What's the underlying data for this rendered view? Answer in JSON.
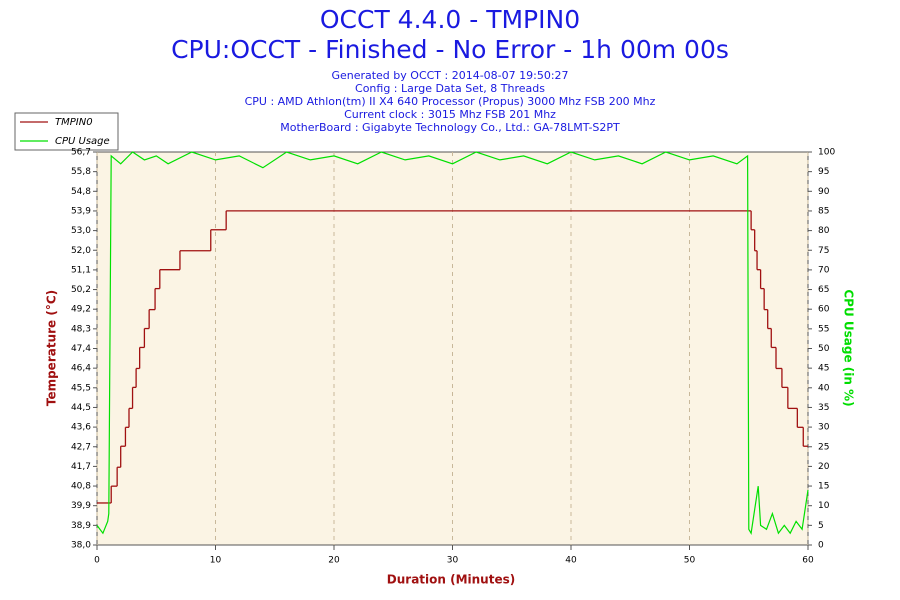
{
  "chart_data": {
    "type": "line",
    "title": "OCCT 4.4.0 - TMPIN0",
    "subtitle": "CPU:OCCT - Finished - No Error - 1h 00m 00s",
    "info_lines": [
      "Generated by OCCT : 2014-08-07 19:50:27",
      "Config : Large Data Set, 8 Threads",
      "CPU : AMD Athlon(tm) II X4 640 Processor (Propus) 3000 Mhz FSB 200 Mhz",
      "Current clock : 3015 Mhz FSB 201 Mhz",
      "MotherBoard : Gigabyte Technology Co., Ltd.: GA-78LMT-S2PT"
    ],
    "x_label": "Duration (Minutes)",
    "y_label": "Temperature (°C)",
    "y2_label": "CPU Usage (in %)",
    "xlim": [
      0,
      60
    ],
    "xticks": [
      0,
      10,
      20,
      30,
      40,
      50,
      60
    ],
    "ylim": [
      38.0,
      56.7
    ],
    "yticks": [
      {
        "value": 38.0,
        "label": "38,0"
      },
      {
        "value": 38.935,
        "label": "38,9"
      },
      {
        "value": 39.87,
        "label": "39,9"
      },
      {
        "value": 40.805,
        "label": "40,8"
      },
      {
        "value": 41.74,
        "label": "41,7"
      },
      {
        "value": 42.675,
        "label": "42,7"
      },
      {
        "value": 43.61,
        "label": "43,6"
      },
      {
        "value": 44.545,
        "label": "44,5"
      },
      {
        "value": 45.48,
        "label": "45,5"
      },
      {
        "value": 46.415,
        "label": "46,4"
      },
      {
        "value": 47.35,
        "label": "47,4"
      },
      {
        "value": 48.285,
        "label": "48,3"
      },
      {
        "value": 49.22,
        "label": "49,2"
      },
      {
        "value": 50.155,
        "label": "50,2"
      },
      {
        "value": 51.09,
        "label": "51,1"
      },
      {
        "value": 52.025,
        "label": "52,0"
      },
      {
        "value": 52.96,
        "label": "53,0"
      },
      {
        "value": 53.895,
        "label": "53,9"
      },
      {
        "value": 54.83,
        "label": "54,8"
      },
      {
        "value": 55.765,
        "label": "55,8"
      },
      {
        "value": 56.7,
        "label": "56,7"
      }
    ],
    "y2lim": [
      0,
      100
    ],
    "y2ticks": [
      0,
      5,
      10,
      15,
      20,
      25,
      30,
      35,
      40,
      45,
      50,
      55,
      60,
      65,
      70,
      75,
      80,
      85,
      90,
      95,
      100
    ],
    "grid": true,
    "legend": "top-left",
    "series": [
      {
        "name": "TMPIN0",
        "color": "#a01010",
        "step": "post",
        "x": [
          0,
          1.2,
          1.7,
          2.0,
          2.4,
          2.7,
          3.0,
          3.3,
          3.6,
          4.0,
          4.4,
          4.9,
          5.3,
          7.0,
          9.6,
          10.9,
          55.2,
          55.5,
          55.7,
          56.0,
          56.3,
          56.6,
          56.9,
          57.3,
          57.8,
          58.3,
          59.1,
          59.6,
          60
        ],
        "values": [
          40.0,
          40.8,
          41.7,
          42.7,
          43.6,
          44.5,
          45.5,
          46.4,
          47.4,
          48.3,
          49.2,
          50.2,
          51.1,
          52.0,
          53.0,
          53.9,
          53.0,
          52.0,
          51.1,
          50.2,
          49.2,
          48.3,
          47.4,
          46.4,
          45.5,
          44.5,
          43.6,
          42.7,
          42.7
        ]
      },
      {
        "name": "CPU Usage",
        "color": "#00e000",
        "axis": "y2",
        "x": [
          0,
          0.5,
          0.9,
          1.0,
          1.2,
          2,
          3,
          4,
          5,
          6,
          8,
          10,
          12,
          14,
          16,
          18,
          20,
          22,
          24,
          26,
          28,
          30,
          32,
          34,
          36,
          38,
          40,
          42,
          44,
          46,
          48,
          50,
          52,
          54,
          54.9,
          55.0,
          55.2,
          55.8,
          56.0,
          56.5,
          57,
          57.5,
          58,
          58.5,
          59,
          59.5,
          60
        ],
        "values": [
          5,
          3,
          6,
          8,
          99,
          97,
          100,
          98,
          99,
          97,
          100,
          98,
          99,
          96,
          100,
          98,
          99,
          97,
          100,
          98,
          99,
          97,
          100,
          98,
          99,
          97,
          100,
          98,
          99,
          97,
          100,
          98,
          99,
          97,
          99,
          4,
          3,
          15,
          5,
          4,
          8,
          3,
          5,
          3,
          6,
          4,
          14
        ]
      }
    ]
  }
}
